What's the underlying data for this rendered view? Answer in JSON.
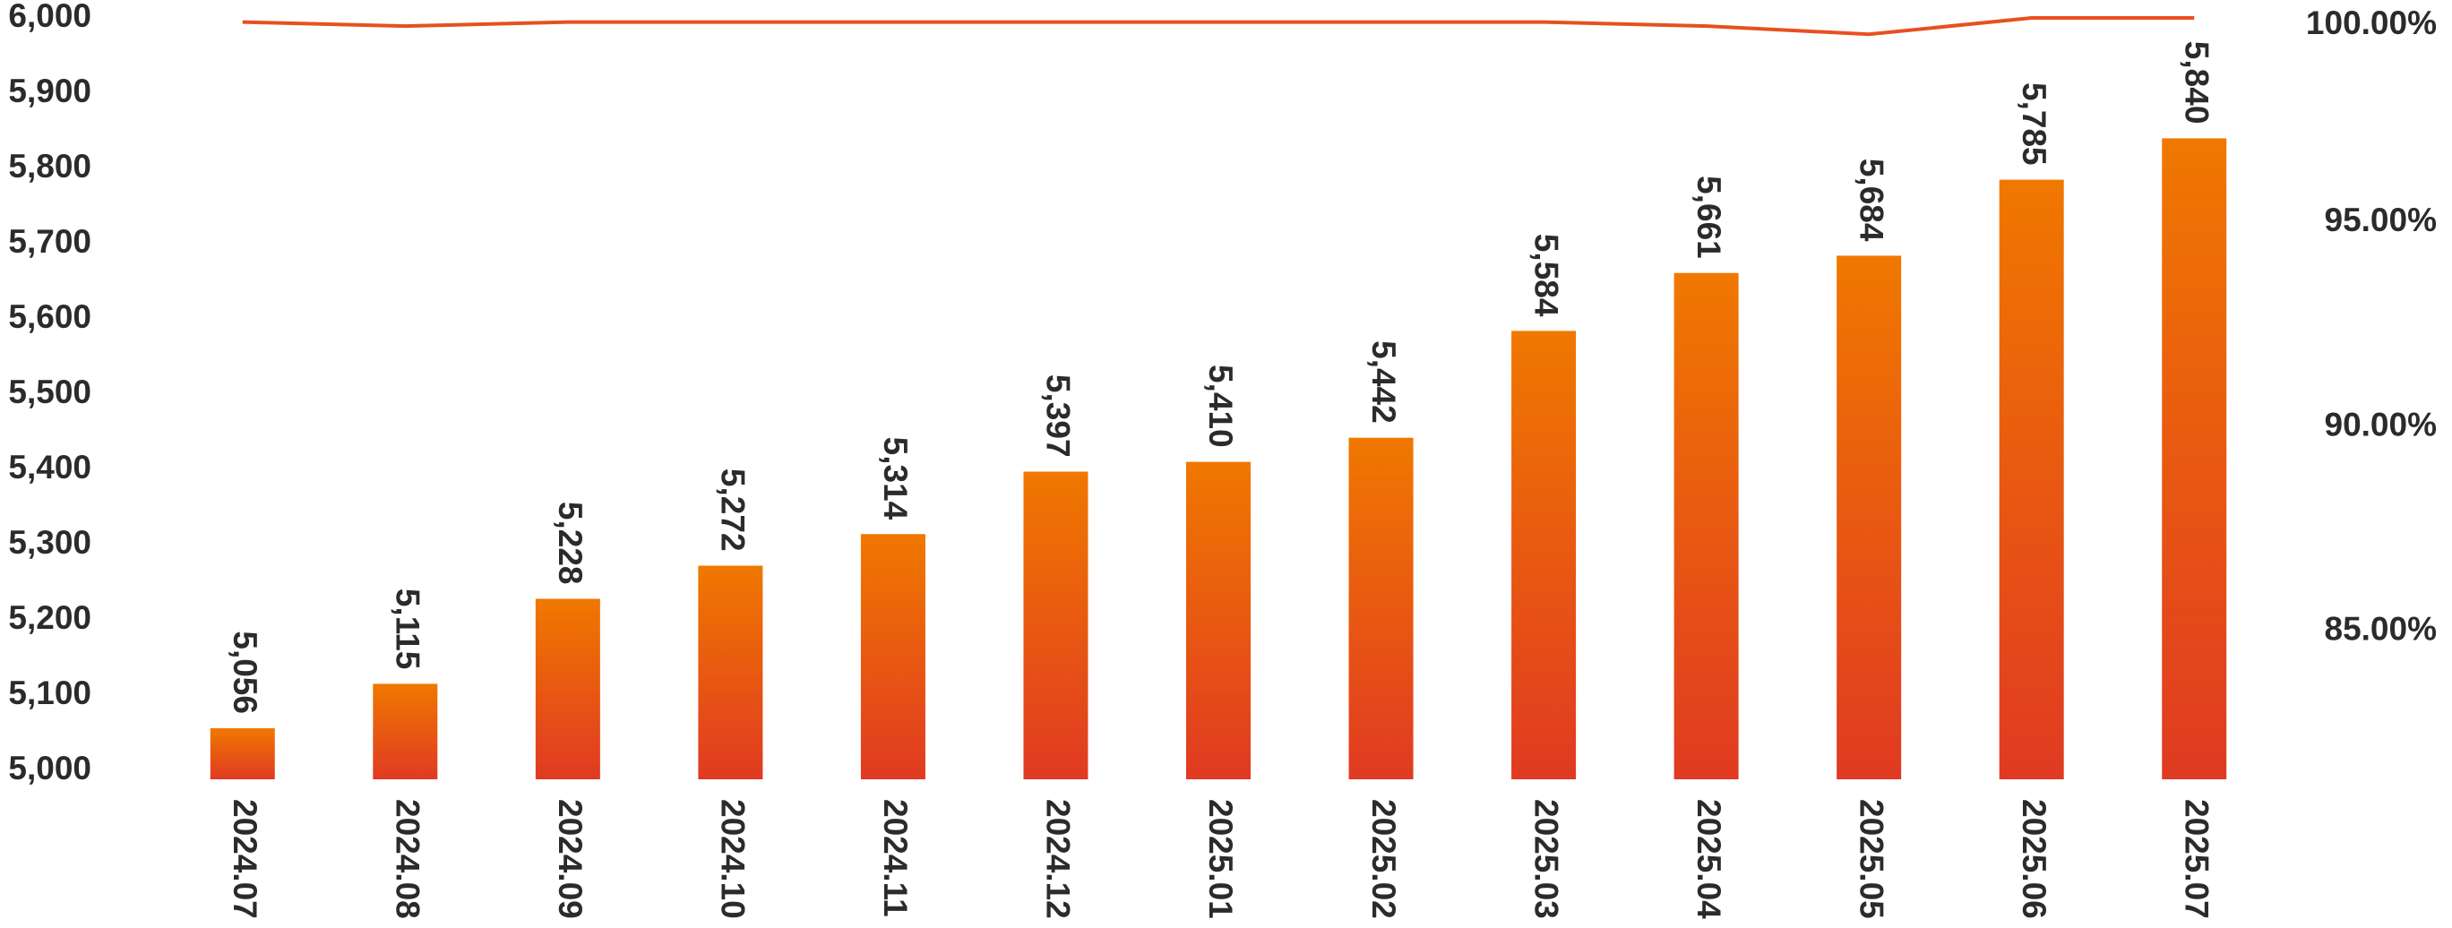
{
  "chart_data": {
    "type": "bar",
    "categories": [
      "2024.07",
      "2024.08",
      "2024.09",
      "2024.10",
      "2024.11",
      "2024.12",
      "2025.01",
      "2025.02",
      "2025.03",
      "2025.04",
      "2025.05",
      "2025.06",
      "2025.07"
    ],
    "series": [
      {
        "type": "bar",
        "color": "#f07800",
        "color_bottom": "#e03a22",
        "values": [
          5056,
          5115,
          5228,
          5272,
          5314,
          5397,
          5410,
          5442,
          5584,
          5661,
          5684,
          5785,
          5840
        ],
        "value_labels": [
          "5,056",
          "5,115",
          "5,228",
          "5,272",
          "5,314",
          "5,397",
          "5,410",
          "5,442",
          "5,584",
          "5,661",
          "5,684",
          "5,785",
          "5,840"
        ]
      },
      {
        "type": "line",
        "axis": "y2",
        "color": "#e8501e",
        "values": [
          99.9,
          99.8,
          99.9,
          99.9,
          99.9,
          99.9,
          99.9,
          99.9,
          99.9,
          99.8,
          99.6,
          100,
          100
        ]
      }
    ],
    "ylim": [
      5000,
      6000
    ],
    "yticks": [
      {
        "value": 5000,
        "label": "5,000"
      },
      {
        "value": 5100,
        "label": "5,100"
      },
      {
        "value": 5200,
        "label": "5,200"
      },
      {
        "value": 5300,
        "label": "5,300"
      },
      {
        "value": 5400,
        "label": "5,400"
      },
      {
        "value": 5500,
        "label": "5,500"
      },
      {
        "value": 5600,
        "label": "5,600"
      },
      {
        "value": 5700,
        "label": "5,700"
      },
      {
        "value": 5800,
        "label": "5,800"
      },
      {
        "value": 5900,
        "label": "5,900"
      },
      {
        "value": 6000,
        "label": "6,000"
      }
    ],
    "y2lim": [
      81.6,
      100
    ],
    "y2ticks": [
      {
        "value": 85,
        "label": "85.00%"
      },
      {
        "value": 90,
        "label": "90.00%"
      },
      {
        "value": 95,
        "label": "95.00%"
      },
      {
        "value": 100,
        "label": "100.00%"
      }
    ],
    "grid": false
  }
}
